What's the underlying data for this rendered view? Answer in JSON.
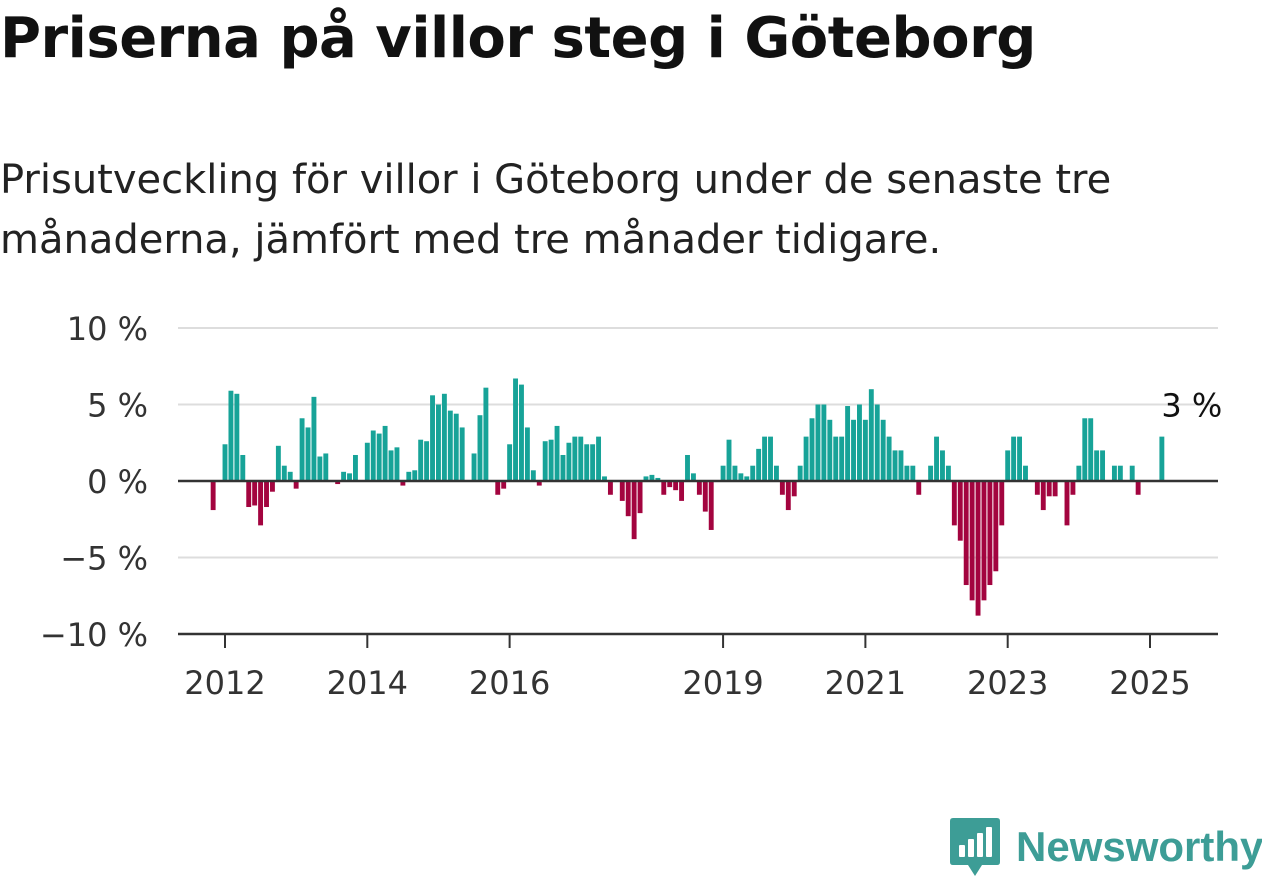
{
  "title": "Priserna på villor steg i Göteborg",
  "subtitle": "Prisutveckling för villor i Göteborg under de senaste tre månaderna, jämfört med tre månader tidigare.",
  "brand": {
    "name": "Newsworthy",
    "icon": "newsworthy-chart-badge-icon",
    "color": "#3d9d96"
  },
  "chart_data": {
    "type": "bar",
    "title": "",
    "xlabel": "",
    "ylabel": "",
    "unit": "%",
    "ylim": [
      -10,
      10
    ],
    "y_ticks": [
      10,
      5,
      0,
      -5,
      -10
    ],
    "y_tick_labels": [
      "10 %",
      "5 %",
      "0 %",
      "−5 %",
      "−10 %"
    ],
    "x_ticks": [
      "2012",
      "2014",
      "2016",
      "2019",
      "2021",
      "2023",
      "2025"
    ],
    "grid": true,
    "legend": "none",
    "colors": {
      "positive": "#17a398",
      "negative": "#a3043f",
      "grid": "#dddddd",
      "axis": "#333333"
    },
    "last_value_label": "3 %",
    "x_start": "2011-11",
    "x_end": "2025-04",
    "values": [
      -1.9,
      0,
      2.4,
      5.9,
      5.7,
      1.7,
      -1.7,
      -1.6,
      -2.9,
      -1.7,
      -0.7,
      2.3,
      1.0,
      0.6,
      -0.5,
      4.1,
      3.5,
      5.5,
      1.6,
      1.8,
      0,
      -0.2,
      0.6,
      0.5,
      1.7,
      0,
      2.5,
      3.3,
      3.1,
      3.6,
      2.0,
      2.2,
      -0.3,
      0.6,
      0.7,
      2.7,
      2.6,
      5.6,
      5.0,
      5.7,
      4.6,
      4.4,
      3.5,
      0,
      1.8,
      4.3,
      6.1,
      0,
      -0.9,
      -0.5,
      2.4,
      6.7,
      6.3,
      3.5,
      0.7,
      -0.3,
      2.6,
      2.7,
      3.6,
      1.7,
      2.5,
      2.9,
      2.9,
      2.4,
      2.4,
      2.9,
      0.3,
      -0.9,
      0,
      -1.3,
      -2.3,
      -3.8,
      -2.1,
      0.3,
      0.4,
      0.2,
      -0.9,
      -0.4,
      -0.6,
      -1.3,
      1.7,
      0.5,
      -0.9,
      -2.0,
      -3.2,
      0,
      1.0,
      2.7,
      1.0,
      0.5,
      0.3,
      1.0,
      2.1,
      2.9,
      2.9,
      1.0,
      -0.9,
      -1.9,
      -1.0,
      1.0,
      2.9,
      4.1,
      5.0,
      5.0,
      4.0,
      2.9,
      2.9,
      4.9,
      4.0,
      5.0,
      4.0,
      6.0,
      5.0,
      4.0,
      2.9,
      2.0,
      2.0,
      1.0,
      1.0,
      -0.9,
      0,
      1.0,
      2.9,
      2.0,
      1.0,
      -2.9,
      -3.9,
      -6.8,
      -7.8,
      -8.8,
      -7.8,
      -6.8,
      -5.9,
      -2.9,
      2.0,
      2.9,
      2.9,
      1.0,
      0,
      -0.9,
      -1.9,
      -1.0,
      -1.0,
      0,
      -2.9,
      -0.9,
      1.0,
      4.1,
      4.1,
      2.0,
      2.0,
      0,
      1.0,
      1.0,
      0,
      1.0,
      -0.9,
      0,
      0,
      0,
      2.9
    ]
  }
}
